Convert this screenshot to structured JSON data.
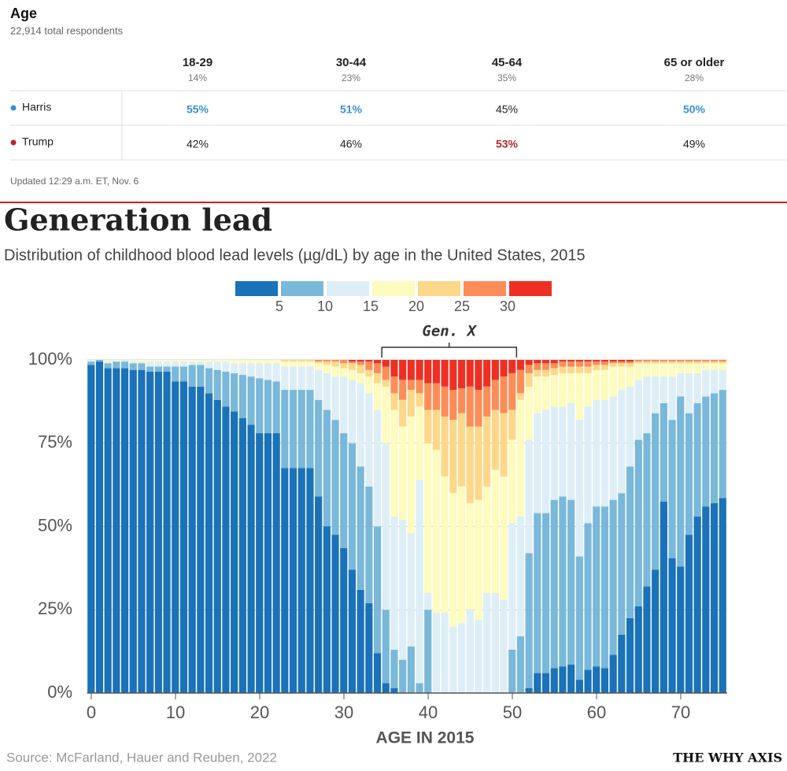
{
  "table": {
    "title": "Age",
    "subtitle": "22,914 total respondents",
    "columns": [
      {
        "label": "18-29",
        "share": "14%"
      },
      {
        "label": "30-44",
        "share": "23%"
      },
      {
        "label": "45-64",
        "share": "35%"
      },
      {
        "label": "65 or older",
        "share": "28%"
      }
    ],
    "rows": [
      {
        "name": "Harris",
        "color": "#3a8fd8",
        "values": [
          "55%",
          "51%",
          "45%",
          "50%"
        ]
      },
      {
        "name": "Trump",
        "color": "#b5262b",
        "values": [
          "42%",
          "46%",
          "53%",
          "49%"
        ]
      }
    ],
    "footnote": "Updated 12:29 a.m. ET, Nov. 6"
  },
  "chart_data": {
    "type": "stacked_bar",
    "title": "Generation lead",
    "subtitle": "Distribution of childhood blood lead levels (µg/dL) by age in the United States, 2015",
    "x_label": "AGE IN 2015",
    "source": "Source: McFarland, Hauer and Reuben, 2022",
    "brand": "THE WHY AXIS",
    "annotation": {
      "label": "Gen. X",
      "x_range": [
        35,
        50
      ]
    },
    "legend_ticks": [
      5,
      10,
      15,
      20,
      25,
      30
    ],
    "x": [
      0,
      1,
      2,
      3,
      4,
      5,
      6,
      7,
      8,
      9,
      10,
      11,
      12,
      13,
      14,
      15,
      16,
      17,
      18,
      19,
      20,
      21,
      22,
      23,
      24,
      25,
      26,
      27,
      28,
      29,
      30,
      31,
      32,
      33,
      34,
      35,
      36,
      37,
      38,
      39,
      40,
      41,
      42,
      43,
      44,
      45,
      46,
      47,
      48,
      49,
      50,
      51,
      52,
      53,
      54,
      55,
      56,
      57,
      58,
      59,
      60,
      61,
      62,
      63,
      64,
      65,
      66,
      67,
      68,
      69,
      70,
      71,
      72,
      73,
      74,
      75
    ],
    "xlim": [
      -0.5,
      75.5
    ],
    "xticks": [
      0,
      10,
      20,
      30,
      40,
      50,
      60,
      70
    ],
    "ylim": [
      0,
      100
    ],
    "yticks": [
      {
        "value": 0,
        "label": "0%"
      },
      {
        "value": 25,
        "label": "25%"
      },
      {
        "value": 50,
        "label": "50%"
      },
      {
        "value": 75,
        "label": "75%"
      },
      {
        "value": 100,
        "label": "100%"
      }
    ],
    "grid": true,
    "series": [
      {
        "color": "#1a72b8",
        "values": [
          98.5,
          99.5,
          97.5,
          97.5,
          97.5,
          97,
          97,
          96.5,
          96.5,
          96.5,
          93.5,
          93.5,
          92,
          92,
          90,
          88,
          86,
          84.5,
          82.5,
          80.5,
          78,
          78,
          78,
          67.5,
          67.5,
          67.5,
          67.5,
          59,
          50,
          47.5,
          43.5,
          37,
          31,
          27,
          12,
          3,
          1.5,
          0,
          0,
          0,
          0,
          0,
          0,
          0,
          0,
          0,
          0,
          0,
          0,
          0,
          0,
          0,
          1.5,
          6,
          6,
          7.5,
          8,
          8.5,
          4,
          7,
          8,
          7.5,
          11.5,
          17.5,
          22.5,
          26,
          32,
          37,
          57.5,
          40.5,
          38,
          47.5,
          53,
          56,
          57,
          58.5
        ]
      },
      {
        "color": "#7ab8d9",
        "values": [
          1,
          0.5,
          1.5,
          2,
          2,
          2,
          2,
          1.5,
          1.5,
          1.5,
          4.5,
          4.5,
          6.5,
          6.5,
          7.5,
          9,
          10.5,
          11.5,
          13,
          14.5,
          16.5,
          16,
          15.5,
          23.5,
          23.5,
          23.5,
          23.5,
          29,
          35,
          34.5,
          34.5,
          38,
          37,
          35,
          38,
          22,
          11.5,
          10,
          14,
          3,
          25,
          0,
          0,
          0,
          0,
          0,
          0,
          0,
          0,
          0,
          13,
          17,
          40.5,
          48,
          48,
          50.5,
          51,
          49.5,
          37,
          44,
          48,
          48.5,
          46.5,
          42.5,
          45.5,
          50,
          46,
          47,
          29.5,
          41.5,
          51,
          36.5,
          34,
          33,
          33,
          32.5
        ]
      },
      {
        "color": "#ddeef6",
        "values": [
          0.5,
          0,
          0.5,
          0,
          0.5,
          0.5,
          0.5,
          1.5,
          1.5,
          1.5,
          1.5,
          1.5,
          1,
          1,
          2,
          2.5,
          3,
          3,
          3.5,
          4,
          4.5,
          5,
          5.5,
          7,
          7,
          7,
          7,
          9,
          11,
          13,
          17,
          19,
          25,
          28,
          35,
          50,
          40,
          42,
          34,
          61,
          5,
          24,
          24,
          20,
          21,
          25,
          22,
          30,
          30,
          28,
          38,
          36,
          34,
          30,
          31,
          28,
          27,
          29,
          41,
          35,
          32,
          32,
          31,
          31,
          24,
          18,
          17,
          11,
          8,
          13,
          7,
          12,
          9,
          8,
          7,
          6
        ]
      },
      {
        "color": "#fdfbbd",
        "values": [
          0,
          0,
          0.5,
          0.5,
          0,
          0.5,
          0.5,
          0.5,
          0.5,
          0.5,
          0.5,
          0.5,
          0.5,
          0.5,
          0.5,
          0.5,
          0.5,
          1,
          1,
          1,
          1,
          1,
          1,
          1.5,
          1.5,
          1.5,
          1.5,
          2,
          2.5,
          3,
          2.5,
          3,
          3,
          5,
          8,
          17,
          32,
          28,
          35,
          22,
          45,
          49,
          41,
          40,
          41,
          32,
          36,
          32,
          37,
          37,
          25,
          35,
          16,
          11,
          10,
          9.5,
          10,
          9,
          14,
          10,
          9,
          9,
          9,
          7,
          6,
          5,
          4,
          4,
          4,
          4,
          3,
          3,
          3,
          2,
          2,
          2
        ]
      },
      {
        "color": "#fdd88a",
        "values": [
          0,
          0,
          0,
          0,
          0,
          0,
          0,
          0,
          0,
          0,
          0,
          0,
          0,
          0,
          0,
          0,
          0,
          0,
          0,
          0,
          0,
          0,
          0,
          0.5,
          0.5,
          0.5,
          0.5,
          0.5,
          1,
          1.5,
          1.5,
          2,
          2.5,
          2,
          3,
          2,
          5,
          8,
          8,
          4,
          10,
          12,
          18,
          22,
          22,
          23,
          22,
          21,
          18,
          19,
          9,
          2,
          4,
          2,
          2,
          2,
          2,
          2,
          2,
          2,
          1.5,
          1.5,
          1,
          1,
          1,
          0.5,
          0.5,
          0.5,
          0.5,
          0.5,
          0.5,
          0.5,
          0.5,
          0.5,
          0.5,
          0.5
        ]
      },
      {
        "color": "#fc8d59",
        "values": [
          0,
          0,
          0,
          0,
          0,
          0,
          0,
          0,
          0,
          0,
          0,
          0,
          0,
          0,
          0,
          0,
          0,
          0,
          0,
          0,
          0,
          0,
          0,
          0,
          0,
          0,
          0,
          0.5,
          0.5,
          0.5,
          1,
          0.5,
          1,
          2.5,
          3,
          4,
          5,
          6,
          3,
          4,
          8,
          8,
          9,
          9,
          7.5,
          12,
          11,
          9,
          9,
          11,
          11,
          7,
          2.5,
          2,
          2,
          1.5,
          1.5,
          1.5,
          1.5,
          1.5,
          1,
          1,
          0.5,
          0.5,
          0.5,
          0.5,
          0.5,
          0.5,
          0.5,
          0.5,
          0.5,
          0.5,
          0.5,
          0.5,
          0.5,
          0.5
        ]
      },
      {
        "color": "#ee3024",
        "values": [
          0,
          0,
          0,
          0,
          0,
          0,
          0,
          0,
          0,
          0,
          0,
          0,
          0,
          0,
          0,
          0,
          0,
          0,
          0,
          0,
          0,
          0,
          0,
          0,
          0,
          0,
          0,
          0,
          0,
          0,
          0,
          0.5,
          0.5,
          0.5,
          1,
          2,
          5,
          6,
          6,
          6,
          7,
          7,
          8,
          9,
          8.5,
          8,
          9,
          8,
          6,
          5,
          4,
          3,
          1.5,
          1,
          1,
          1,
          0.5,
          0.5,
          0.5,
          0.5,
          0.5,
          0.5,
          0.5,
          0.5,
          0.5,
          0,
          0,
          0,
          0,
          0,
          0,
          0,
          0,
          0,
          0,
          0
        ]
      }
    ]
  }
}
